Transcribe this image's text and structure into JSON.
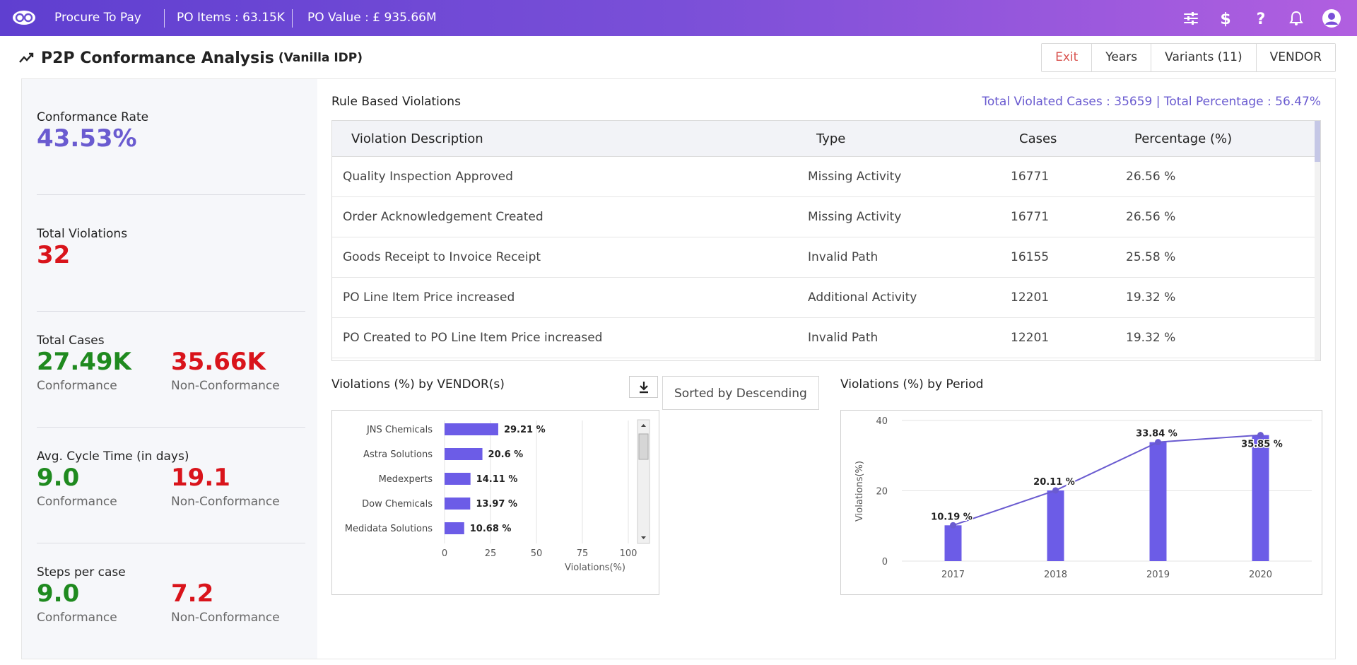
{
  "topbar": {
    "app_name": "Procure To Pay",
    "po_items": "PO Items : 63.15K",
    "po_value": "PO Value : £ 935.66M"
  },
  "page": {
    "title": "P2P Conformance Analysis",
    "subtitle": "(Vanilla IDP)"
  },
  "actions": {
    "exit": "Exit",
    "years": "Years",
    "variants": "Variants (11)",
    "vendor": "VENDOR"
  },
  "kpis": {
    "conformance_rate_label": "Conformance Rate",
    "conformance_rate_value": "43.53%",
    "total_violations_label": "Total Violations",
    "total_violations_value": "32",
    "total_cases_label": "Total Cases",
    "total_cases_conf": "27.49K",
    "total_cases_nonconf": "35.66K",
    "cycle_time_label": "Avg. Cycle Time (in days)",
    "cycle_time_conf": "9.0",
    "cycle_time_nonconf": "19.1",
    "steps_label": "Steps per case",
    "steps_conf": "9.0",
    "steps_nonconf": "7.2",
    "conformance_word": "Conformance",
    "nonconformance_word": "Non-Conformance"
  },
  "violations": {
    "title": "Rule Based Violations",
    "totals": "Total Violated Cases : 35659 | Total Percentage : 56.47%",
    "columns": [
      "Violation Description",
      "Type",
      "Cases",
      "Percentage (%)"
    ],
    "rows": [
      [
        "Quality Inspection Approved",
        "Missing Activity",
        "16771",
        "26.56 %"
      ],
      [
        "Order Acknowledgement Created",
        "Missing Activity",
        "16771",
        "26.56 %"
      ],
      [
        "Goods Receipt to Invoice Receipt",
        "Invalid Path",
        "16155",
        "25.58 %"
      ],
      [
        "PO Line Item Price increased",
        "Additional Activity",
        "12201",
        "19.32 %"
      ],
      [
        "PO Created to PO Line Item Price increased",
        "Invalid Path",
        "12201",
        "19.32 %"
      ]
    ]
  },
  "vendor_chart": {
    "title": "Violations (%) by VENDOR(s)",
    "sort_label": "Sorted by Descending"
  },
  "period_chart": {
    "title": "Violations (%) by Period"
  },
  "chart_data": [
    {
      "type": "bar",
      "orientation": "horizontal",
      "categories": [
        "JNS Chemicals",
        "Astra Solutions",
        "Medexperts",
        "Dow Chemicals",
        "Medidata Solutions"
      ],
      "values": [
        29.21,
        20.6,
        14.11,
        13.97,
        10.68
      ],
      "data_labels": [
        "29.21 %",
        "20.6 %",
        "14.11 %",
        "13.97 %",
        "10.68 %"
      ],
      "xlabel": "Violations(%)",
      "ylabel": "",
      "xlim": [
        0,
        100
      ],
      "xticks": [
        0,
        25,
        50,
        75,
        100
      ],
      "grid": true,
      "color": "#6c5ce7"
    },
    {
      "type": "bar",
      "categories": [
        "2017",
        "2018",
        "2019",
        "2020"
      ],
      "values": [
        10.19,
        20.11,
        33.84,
        35.85
      ],
      "data_labels": [
        "10.19 %",
        "20.11 %",
        "33.84 %",
        "35.85 %"
      ],
      "overlay_line": true,
      "xlabel": "",
      "ylabel": "Violations(%)",
      "ylim": [
        0,
        40
      ],
      "yticks": [
        0,
        20,
        40
      ],
      "grid": true,
      "color": "#6c5ce7"
    }
  ],
  "colors": {
    "accent": "#6a5bd0",
    "bar": "#6c5ce7",
    "positive": "#1f8a1f",
    "negative": "#d9141b"
  }
}
